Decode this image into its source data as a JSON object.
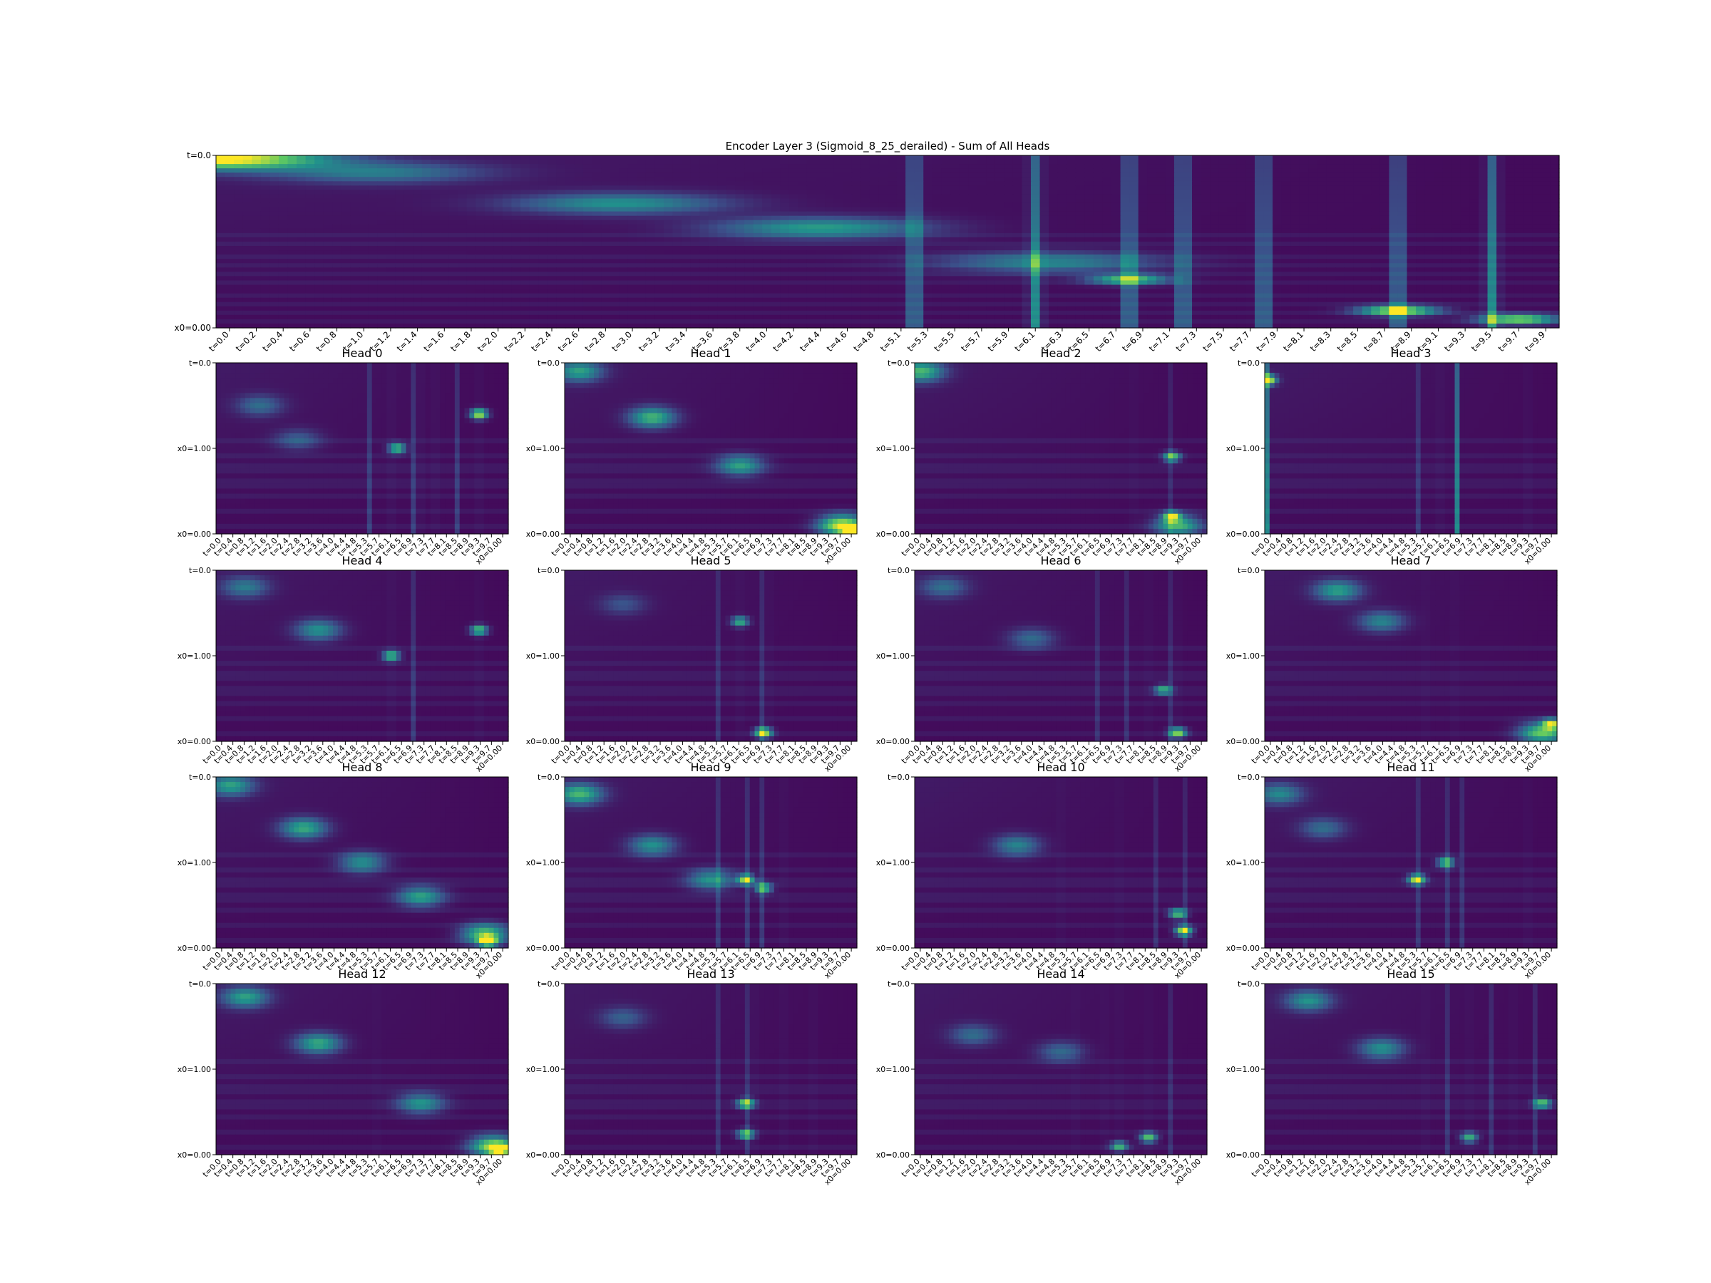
{
  "figure": {
    "colormap": "viridis",
    "colormap_stops": [
      "#440154",
      "#3b528b",
      "#21918c",
      "#5ec962",
      "#fde725"
    ],
    "background": "#ffffff"
  },
  "chart_data": [
    {
      "type": "heatmap",
      "title": "Encoder Layer 3 (Sigmoid_8_25_derailed) - Sum of All Heads",
      "x_tick_labels": [
        "t=0.0",
        "t=0.2",
        "t=0.4",
        "t=0.6",
        "t=0.8",
        "t=1.0",
        "t=1.2",
        "t=1.4",
        "t=1.6",
        "t=1.8",
        "t=2.0",
        "t=2.2",
        "t=2.4",
        "t=2.6",
        "t=2.8",
        "t=3.0",
        "t=3.2",
        "t=3.4",
        "t=3.6",
        "t=3.8",
        "t=4.0",
        "t=4.2",
        "t=4.4",
        "t=4.6",
        "t=4.8",
        "t=5.1",
        "t=5.3",
        "t=5.5",
        "t=5.7",
        "t=5.9",
        "t=6.1",
        "t=6.3",
        "t=6.5",
        "t=6.7",
        "t=6.9",
        "t=7.1",
        "t=7.3",
        "t=7.5",
        "t=7.7",
        "t=7.9",
        "t=8.1",
        "t=8.3",
        "t=8.5",
        "t=8.7",
        "t=8.9",
        "t=9.1",
        "t=9.3",
        "t=9.5",
        "t=9.7",
        "t=9.9"
      ],
      "y_tick_labels_top": "t=0.0",
      "y_tick_labels_bottom": "x0=0.00",
      "features": {
        "diagonal": [
          [
            0.0,
            0.02,
            1.0
          ],
          [
            0.12,
            0.1,
            0.35
          ],
          [
            0.3,
            0.28,
            0.45
          ],
          [
            0.45,
            0.42,
            0.5
          ],
          [
            0.62,
            0.62,
            0.4
          ]
        ],
        "bright_columns": [
          0.52,
          0.61,
          0.68,
          0.72,
          0.78,
          0.88,
          0.95
        ],
        "bright_points": [
          [
            0.88,
            0.9,
            0.9
          ],
          [
            0.97,
            0.95,
            0.8
          ],
          [
            0.68,
            0.72,
            0.7
          ]
        ],
        "strength": 0.45
      }
    },
    {
      "type": "heatmap",
      "title": "Head 0",
      "features": {
        "diagonal": [
          [
            0.15,
            0.25,
            0.3
          ],
          [
            0.28,
            0.45,
            0.25
          ]
        ],
        "bright_columns": [
          0.52,
          0.6,
          0.68,
          0.7,
          0.75,
          0.83,
          0.9
        ],
        "bright_points": [
          [
            0.9,
            0.3,
            0.9
          ],
          [
            0.62,
            0.5,
            0.7
          ]
        ],
        "strength": 0.55
      }
    },
    {
      "type": "heatmap",
      "title": "Head 1",
      "features": {
        "diagonal": [
          [
            0.05,
            0.05,
            0.5
          ],
          [
            0.3,
            0.32,
            0.6
          ],
          [
            0.6,
            0.6,
            0.5
          ],
          [
            0.95,
            0.95,
            0.9
          ]
        ],
        "bright_columns": [],
        "bright_points": [
          [
            0.98,
            0.98,
            1.0
          ]
        ],
        "strength": 0.3
      }
    },
    {
      "type": "heatmap",
      "title": "Head 2",
      "features": {
        "diagonal": [
          [
            0.02,
            0.05,
            0.6
          ],
          [
            0.9,
            0.95,
            0.6
          ]
        ],
        "bright_columns": [
          0.75,
          0.88
        ],
        "bright_points": [
          [
            0.88,
            0.55,
            0.7
          ],
          [
            0.88,
            0.9,
            0.8
          ]
        ],
        "strength": 0.35
      }
    },
    {
      "type": "heatmap",
      "title": "Head 3",
      "features": {
        "diagonal": [],
        "bright_columns": [
          0.01,
          0.52,
          0.6,
          0.66,
          0.9
        ],
        "bright_points": [
          [
            0.01,
            0.1,
            1.0
          ]
        ],
        "strength": 0.5
      }
    },
    {
      "type": "heatmap",
      "title": "Head 4",
      "features": {
        "diagonal": [
          [
            0.1,
            0.1,
            0.35
          ],
          [
            0.35,
            0.35,
            0.45
          ]
        ],
        "bright_columns": [
          0.6,
          0.68,
          0.9
        ],
        "bright_points": [
          [
            0.6,
            0.5,
            0.7
          ],
          [
            0.9,
            0.35,
            0.7
          ]
        ],
        "strength": 0.5
      }
    },
    {
      "type": "heatmap",
      "title": "Head 5",
      "features": {
        "diagonal": [
          [
            0.2,
            0.2,
            0.2
          ]
        ],
        "bright_columns": [
          0.52,
          0.6,
          0.68,
          0.7
        ],
        "bright_points": [
          [
            0.68,
            0.95,
            0.9
          ],
          [
            0.6,
            0.3,
            0.6
          ]
        ],
        "strength": 0.45
      }
    },
    {
      "type": "heatmap",
      "title": "Head 6",
      "features": {
        "diagonal": [
          [
            0.1,
            0.1,
            0.3
          ],
          [
            0.4,
            0.4,
            0.3
          ]
        ],
        "bright_columns": [
          0.62,
          0.72,
          0.8,
          0.87,
          0.9
        ],
        "bright_points": [
          [
            0.9,
            0.95,
            0.8
          ],
          [
            0.85,
            0.7,
            0.6
          ]
        ],
        "strength": 0.4
      }
    },
    {
      "type": "heatmap",
      "title": "Head 7",
      "features": {
        "diagonal": [
          [
            0.25,
            0.12,
            0.5
          ],
          [
            0.4,
            0.3,
            0.4
          ],
          [
            0.95,
            0.95,
            0.7
          ]
        ],
        "bright_columns": [
          0.55,
          0.65
        ],
        "bright_points": [
          [
            0.98,
            0.9,
            0.8
          ]
        ],
        "strength": 0.35
      }
    },
    {
      "type": "heatmap",
      "title": "Head 8",
      "features": {
        "diagonal": [
          [
            0.05,
            0.05,
            0.5
          ],
          [
            0.3,
            0.3,
            0.55
          ],
          [
            0.5,
            0.5,
            0.45
          ],
          [
            0.7,
            0.7,
            0.5
          ],
          [
            0.92,
            0.92,
            0.7
          ]
        ],
        "bright_columns": [],
        "bright_points": [
          [
            0.93,
            0.96,
            0.9
          ]
        ],
        "strength": 0.3
      }
    },
    {
      "type": "heatmap",
      "title": "Head 9",
      "features": {
        "diagonal": [
          [
            0.05,
            0.1,
            0.6
          ],
          [
            0.3,
            0.4,
            0.45
          ],
          [
            0.5,
            0.6,
            0.45
          ]
        ],
        "bright_columns": [
          0.52,
          0.62,
          0.68,
          0.75
        ],
        "bright_points": [
          [
            0.62,
            0.6,
            0.8
          ],
          [
            0.68,
            0.65,
            0.7
          ]
        ],
        "strength": 0.5
      }
    },
    {
      "type": "heatmap",
      "title": "Head 10",
      "features": {
        "diagonal": [
          [
            0.35,
            0.4,
            0.4
          ]
        ],
        "bright_columns": [
          0.5,
          0.7,
          0.82,
          0.92
        ],
        "bright_points": [
          [
            0.92,
            0.9,
            0.9
          ],
          [
            0.9,
            0.8,
            0.7
          ]
        ],
        "strength": 0.4
      }
    },
    {
      "type": "heatmap",
      "title": "Head 11",
      "features": {
        "diagonal": [
          [
            0.05,
            0.1,
            0.4
          ],
          [
            0.2,
            0.3,
            0.3
          ]
        ],
        "bright_columns": [
          0.52,
          0.62,
          0.68,
          0.9
        ],
        "bright_points": [
          [
            0.52,
            0.6,
            0.9
          ],
          [
            0.62,
            0.5,
            0.7
          ]
        ],
        "strength": 0.45
      }
    },
    {
      "type": "heatmap",
      "title": "Head 12",
      "features": {
        "diagonal": [
          [
            0.1,
            0.08,
            0.5
          ],
          [
            0.35,
            0.35,
            0.55
          ],
          [
            0.7,
            0.7,
            0.45
          ],
          [
            0.95,
            0.95,
            0.8
          ]
        ],
        "bright_columns": [
          0.55
        ],
        "bright_points": [
          [
            0.97,
            0.97,
            0.9
          ]
        ],
        "strength": 0.3
      }
    },
    {
      "type": "heatmap",
      "title": "Head 13",
      "features": {
        "diagonal": [
          [
            0.2,
            0.2,
            0.25
          ]
        ],
        "bright_columns": [
          0.52,
          0.62,
          0.65,
          0.75,
          0.85
        ],
        "bright_points": [
          [
            0.62,
            0.7,
            0.8
          ],
          [
            0.62,
            0.88,
            0.7
          ]
        ],
        "strength": 0.45
      }
    },
    {
      "type": "heatmap",
      "title": "Head 14",
      "features": {
        "diagonal": [
          [
            0.2,
            0.3,
            0.3
          ],
          [
            0.5,
            0.4,
            0.3
          ]
        ],
        "bright_columns": [
          0.55,
          0.65,
          0.7,
          0.8,
          0.88
        ],
        "bright_points": [
          [
            0.8,
            0.9,
            0.7
          ],
          [
            0.7,
            0.95,
            0.6
          ]
        ],
        "strength": 0.4
      }
    },
    {
      "type": "heatmap",
      "title": "Head 15",
      "features": {
        "diagonal": [
          [
            0.15,
            0.1,
            0.45
          ],
          [
            0.4,
            0.38,
            0.45
          ]
        ],
        "bright_columns": [
          0.55,
          0.62,
          0.7,
          0.78,
          0.85,
          0.92
        ],
        "bright_points": [
          [
            0.95,
            0.7,
            0.7
          ],
          [
            0.7,
            0.9,
            0.6
          ]
        ],
        "strength": 0.45
      }
    }
  ],
  "small_x_tick_labels": [
    "t=0.0",
    "t=0.4",
    "t=0.8",
    "t=1.2",
    "t=1.6",
    "t=2.0",
    "t=2.4",
    "t=2.8",
    "t=3.2",
    "t=3.6",
    "t=4.0",
    "t=4.4",
    "t=4.8",
    "t=5.3",
    "t=5.7",
    "t=6.1",
    "t=6.5",
    "t=6.9",
    "t=7.3",
    "t=7.7",
    "t=8.1",
    "t=8.5",
    "t=8.9",
    "t=9.3",
    "t=9.7",
    "x0=0.00"
  ],
  "small_y_tick_labels": [
    "t=0.0",
    "x0=1.00",
    "x0=0.00"
  ]
}
